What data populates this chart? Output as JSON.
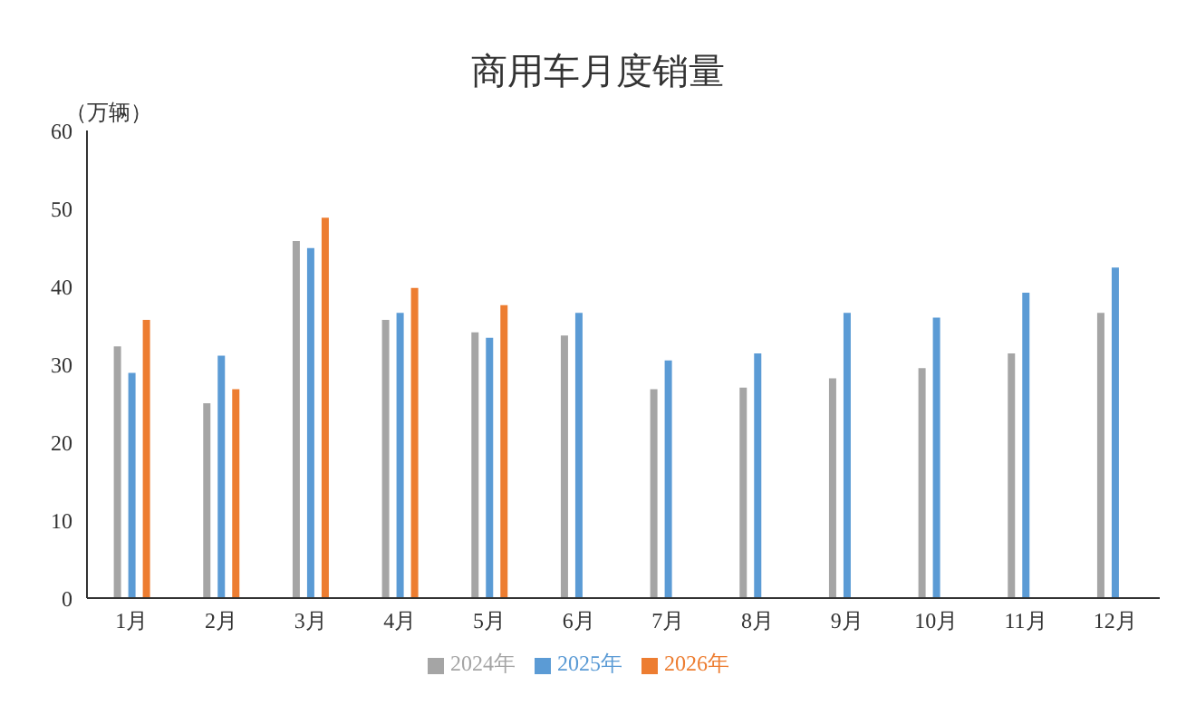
{
  "chart_data": {
    "type": "bar",
    "title": "商用车月度销量",
    "ylabel": "（万辆）",
    "categories": [
      "1月",
      "2月",
      "3月",
      "4月",
      "5月",
      "6月",
      "7月",
      "8月",
      "9月",
      "10月",
      "11月",
      "12月"
    ],
    "series": [
      {
        "name": "2024年",
        "color": "#a5a5a5",
        "values": [
          32.3,
          25.0,
          45.8,
          35.7,
          34.1,
          33.7,
          26.8,
          27.0,
          28.2,
          29.5,
          31.4,
          36.6
        ]
      },
      {
        "name": "2025年",
        "color": "#5b9bd5",
        "values": [
          28.9,
          31.1,
          44.9,
          36.6,
          33.4,
          36.6,
          30.5,
          31.4,
          36.6,
          36.0,
          39.2,
          42.4
        ]
      },
      {
        "name": "2026年",
        "color": "#ed7d31",
        "values": [
          35.7,
          26.8,
          48.8,
          39.8,
          37.6,
          null,
          null,
          null,
          null,
          null,
          null,
          null
        ]
      }
    ],
    "ylim": [
      0,
      60
    ],
    "yticks": [
      0,
      10,
      20,
      30,
      40,
      50,
      60
    ],
    "grid": false,
    "legend": "bottom"
  }
}
